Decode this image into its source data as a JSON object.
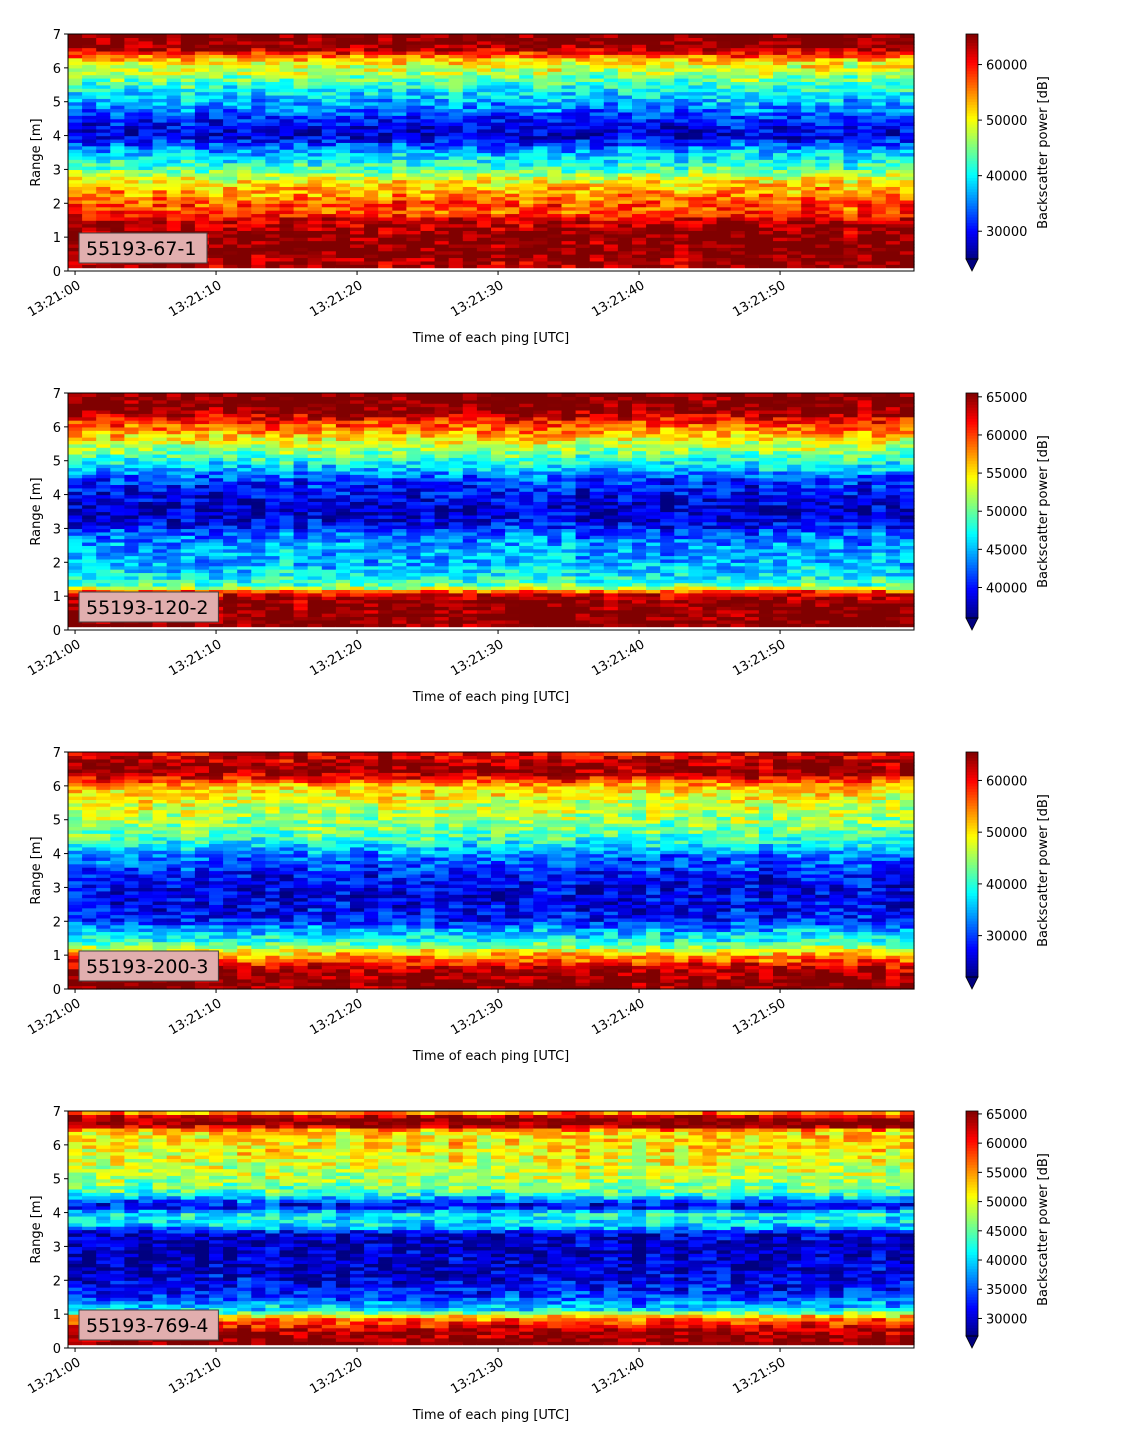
{
  "chart_data": [
    {
      "type": "heatmap",
      "label": "55193-67-1",
      "xlabel": "Time of each ping [UTC]",
      "ylabel": "Range [m]",
      "colorbar_label": "Backscatter power [dB]",
      "colormap": "jet",
      "xlim": [
        "13:20:59.5",
        "13:21:59.5"
      ],
      "xticks": [
        "13:21:00",
        "13:21:10",
        "13:21:20",
        "13:21:30",
        "13:21:40",
        "13:21:50"
      ],
      "ylim": [
        0,
        7
      ],
      "yticks": [
        "0",
        "1",
        "2",
        "3",
        "4",
        "5",
        "6",
        "7"
      ],
      "clim": [
        25000,
        65500
      ],
      "cticks": [
        30000,
        40000,
        50000,
        60000
      ],
      "colorbar_extend": "min",
      "range_profile": {
        "range_m": [
          0.0,
          0.2,
          0.6,
          1.0,
          1.5,
          1.6,
          1.8,
          2.0,
          2.2,
          2.5,
          2.8,
          3.0,
          3.3,
          3.6,
          4.0,
          4.4,
          4.8,
          5.1,
          5.5,
          5.9,
          6.2,
          6.4,
          6.6,
          7.0
        ],
        "power": [
          null,
          64000,
          66000,
          65500,
          63500,
          60000,
          56500,
          58000,
          55000,
          53000,
          48000,
          44000,
          40000,
          36000,
          28000,
          30000,
          35000,
          38000,
          42000,
          48000,
          51000,
          58000,
          65000,
          66000
        ]
      }
    },
    {
      "type": "heatmap",
      "label": "55193-120-2",
      "xlabel": "Time of each ping [UTC]",
      "ylabel": "Range [m]",
      "colorbar_label": "Backscatter power [dB]",
      "colormap": "jet",
      "xlim": [
        "13:20:59.5",
        "13:21:59.5"
      ],
      "xticks": [
        "13:21:00",
        "13:21:10",
        "13:21:20",
        "13:21:30",
        "13:21:40",
        "13:21:50"
      ],
      "ylim": [
        0,
        7
      ],
      "yticks": [
        "0",
        "1",
        "2",
        "3",
        "4",
        "5",
        "6",
        "7"
      ],
      "clim": [
        36000,
        65500
      ],
      "cticks": [
        40000,
        45000,
        50000,
        55000,
        60000,
        65000
      ],
      "colorbar_extend": "min",
      "range_profile": {
        "range_m": [
          0.0,
          0.2,
          0.6,
          0.9,
          1.1,
          1.3,
          1.6,
          2.0,
          2.4,
          2.8,
          3.2,
          3.6,
          4.0,
          4.4,
          4.8,
          5.2,
          5.6,
          5.9,
          6.2,
          6.5,
          7.0
        ],
        "power": [
          null,
          66000,
          66000,
          65000,
          62000,
          50000,
          47000,
          45000,
          44500,
          43000,
          39000,
          38000,
          39500,
          41000,
          46000,
          50000,
          54000,
          58000,
          61000,
          66000,
          66000
        ]
      }
    },
    {
      "type": "heatmap",
      "label": "55193-200-3",
      "xlabel": "Time of each ping [UTC]",
      "ylabel": "Range [m]",
      "colorbar_label": "Backscatter power [dB]",
      "colormap": "jet",
      "xlim": [
        "13:20:59.5",
        "13:21:59.5"
      ],
      "xticks": [
        "13:21:00",
        "13:21:10",
        "13:21:20",
        "13:21:30",
        "13:21:40",
        "13:21:50"
      ],
      "ylim": [
        0,
        7
      ],
      "yticks": [
        "0",
        "1",
        "2",
        "3",
        "4",
        "5",
        "6",
        "7"
      ],
      "clim": [
        22000,
        65500
      ],
      "cticks": [
        30000,
        40000,
        50000,
        60000
      ],
      "colorbar_extend": "min",
      "range_profile": {
        "range_m": [
          0.0,
          0.2,
          0.6,
          0.9,
          1.1,
          1.4,
          1.7,
          2.0,
          2.4,
          2.8,
          3.2,
          3.6,
          4.0,
          4.4,
          4.8,
          5.2,
          5.6,
          6.0,
          6.3,
          6.5,
          7.0
        ],
        "power": [
          65000,
          66000,
          63000,
          56000,
          50000,
          40000,
          36000,
          29000,
          27000,
          26000,
          27000,
          30000,
          33000,
          40000,
          44000,
          46000,
          48000,
          52000,
          62000,
          66000,
          60000
        ]
      }
    },
    {
      "type": "heatmap",
      "label": "55193-769-4",
      "xlabel": "Time of each ping [UTC]",
      "ylabel": "Range [m]",
      "colorbar_label": "Backscatter power [dB]",
      "colormap": "jet",
      "xlim": [
        "13:20:59.5",
        "13:21:59.5"
      ],
      "xticks": [
        "13:21:00",
        "13:21:10",
        "13:21:20",
        "13:21:30",
        "13:21:40",
        "13:21:50"
      ],
      "ylim": [
        0,
        7
      ],
      "yticks": [
        "0",
        "1",
        "2",
        "3",
        "4",
        "5",
        "6",
        "7"
      ],
      "clim": [
        27000,
        65500
      ],
      "cticks": [
        30000,
        35000,
        40000,
        45000,
        50000,
        55000,
        60000,
        65000
      ],
      "colorbar_extend": "min",
      "range_profile": {
        "range_m": [
          0.0,
          0.2,
          0.5,
          0.9,
          1.1,
          1.3,
          1.6,
          2.0,
          2.5,
          3.0,
          3.4,
          3.6,
          4.0,
          4.2,
          4.6,
          5.0,
          5.5,
          6.0,
          6.4,
          6.6,
          6.8,
          7.0
        ],
        "power": [
          null,
          66000,
          64000,
          56000,
          42000,
          38000,
          33000,
          31000,
          29500,
          29000,
          30000,
          40000,
          42000,
          30000,
          44000,
          48000,
          50000,
          52000,
          52000,
          66000,
          66000,
          52000
        ]
      }
    }
  ]
}
